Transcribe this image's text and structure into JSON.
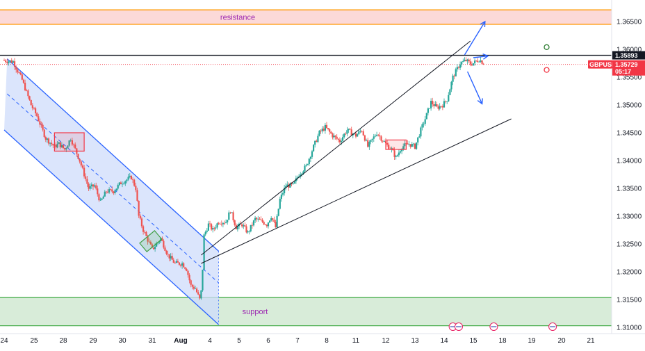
{
  "symbol": "GBPUSD",
  "countdown": "05:17",
  "colors": {
    "up": "#26a69a",
    "down": "#ef5350",
    "channel_fill": "#cfdcfb",
    "channel_line": "#2962ff",
    "resistance_fill": "#fcd9d8",
    "resistance_line": "#ff9800",
    "support_fill": "#d8ecd9",
    "support_line": "#4caf50",
    "price_tag": "#f23645",
    "level_tag": "#131722"
  },
  "chart_data": {
    "type": "candlestick",
    "title": "",
    "y_axis": {
      "side": "right",
      "ylim": [
        1.309,
        1.3675
      ],
      "ticks": [
        "1.36500",
        "1.36000",
        "1.35500",
        "1.35000",
        "1.34500",
        "1.34000",
        "1.33500",
        "1.33000",
        "1.32500",
        "1.32000",
        "1.31500",
        "1.31000"
      ],
      "tick_values": [
        1.365,
        1.36,
        1.355,
        1.35,
        1.345,
        1.34,
        1.335,
        1.33,
        1.325,
        1.32,
        1.315,
        1.31
      ]
    },
    "x_axis": {
      "ticks": [
        "24",
        "25",
        "28",
        "29",
        "30",
        "31",
        "Aug",
        "4",
        "5",
        "6",
        "7",
        "8",
        "11",
        "12",
        "13",
        "14",
        "15",
        "18",
        "19",
        "20",
        "21"
      ],
      "tick_index": [
        0,
        1,
        2,
        3,
        4,
        5,
        6,
        7,
        8,
        9,
        10,
        11,
        12,
        13,
        14,
        15,
        16,
        17,
        18,
        19,
        20
      ]
    },
    "zones": [
      {
        "name": "resistance",
        "label": "resistance",
        "from": 1.3645,
        "to": 1.3671
      },
      {
        "name": "support",
        "label": "support",
        "from": 1.3103,
        "to": 1.3154
      }
    ],
    "horizontal_level": {
      "value": 1.35893,
      "label": "1.35893"
    },
    "current_price": {
      "value": 1.35729,
      "label": "1.35729"
    },
    "ohlc_anchors": [
      [
        0.0,
        1.358
      ],
      [
        0.3,
        1.3578
      ],
      [
        0.6,
        1.3545
      ],
      [
        0.9,
        1.35
      ],
      [
        1.1,
        1.348
      ],
      [
        1.4,
        1.344
      ],
      [
        1.7,
        1.3425
      ],
      [
        1.85,
        1.343
      ],
      [
        2.05,
        1.342
      ],
      [
        2.25,
        1.344
      ],
      [
        2.4,
        1.342
      ],
      [
        2.55,
        1.34
      ],
      [
        2.85,
        1.335
      ],
      [
        3.05,
        1.3355
      ],
      [
        3.25,
        1.3325
      ],
      [
        3.45,
        1.3345
      ],
      [
        3.7,
        1.3345
      ],
      [
        3.95,
        1.336
      ],
      [
        4.3,
        1.337
      ],
      [
        4.45,
        1.335
      ],
      [
        4.55,
        1.33
      ],
      [
        4.7,
        1.3275
      ],
      [
        5.0,
        1.324
      ],
      [
        5.3,
        1.326
      ],
      [
        5.55,
        1.323
      ],
      [
        5.8,
        1.3215
      ],
      [
        6.05,
        1.3215
      ],
      [
        6.2,
        1.3205
      ],
      [
        6.35,
        1.3175
      ],
      [
        6.5,
        1.317
      ],
      [
        6.65,
        1.315
      ],
      [
        6.72,
        1.317
      ],
      [
        6.8,
        1.3265
      ],
      [
        6.95,
        1.3285
      ],
      [
        7.1,
        1.3275
      ],
      [
        7.3,
        1.329
      ],
      [
        7.55,
        1.329
      ],
      [
        7.7,
        1.331
      ],
      [
        7.9,
        1.328
      ],
      [
        8.1,
        1.3285
      ],
      [
        8.3,
        1.327
      ],
      [
        8.55,
        1.3295
      ],
      [
        8.8,
        1.329
      ],
      [
        8.95,
        1.3285
      ],
      [
        9.1,
        1.33
      ],
      [
        9.25,
        1.328
      ],
      [
        9.4,
        1.333
      ],
      [
        9.6,
        1.3355
      ],
      [
        9.85,
        1.3355
      ],
      [
        10.05,
        1.3375
      ],
      [
        10.3,
        1.339
      ],
      [
        10.55,
        1.3425
      ],
      [
        10.75,
        1.345
      ],
      [
        10.95,
        1.346
      ],
      [
        11.2,
        1.3445
      ],
      [
        11.45,
        1.3435
      ],
      [
        11.7,
        1.3455
      ],
      [
        12.0,
        1.3445
      ],
      [
        12.2,
        1.3455
      ],
      [
        12.4,
        1.3425
      ],
      [
        12.7,
        1.345
      ],
      [
        13.0,
        1.343
      ],
      [
        13.2,
        1.342
      ],
      [
        13.35,
        1.3405
      ],
      [
        13.55,
        1.3425
      ],
      [
        13.8,
        1.343
      ],
      [
        14.0,
        1.3425
      ],
      [
        14.2,
        1.3455
      ],
      [
        14.35,
        1.3475
      ],
      [
        14.55,
        1.3505
      ],
      [
        14.75,
        1.3495
      ],
      [
        14.95,
        1.35
      ],
      [
        15.1,
        1.351
      ],
      [
        15.3,
        1.355
      ],
      [
        15.55,
        1.3575
      ],
      [
        15.75,
        1.358
      ],
      [
        15.9,
        1.3574
      ],
      [
        16.0,
        1.3575
      ],
      [
        16.2,
        1.3582
      ],
      [
        16.4,
        1.3573
      ]
    ],
    "annotations": {
      "descending_channel": {
        "upper": [
          [
            0.1,
            1.3583
          ],
          [
            7.3,
            1.3237
          ]
        ],
        "lower": [
          [
            0.0,
            1.3455
          ],
          [
            7.3,
            1.3105
          ]
        ],
        "mid": [
          [
            0.1,
            1.352
          ],
          [
            7.3,
            1.318
          ]
        ]
      },
      "rising_channel": {
        "upper": [
          [
            6.7,
            1.323
          ],
          [
            15.9,
            1.3615
          ]
        ],
        "lower": [
          [
            6.7,
            1.3215
          ],
          [
            17.3,
            1.3475
          ]
        ]
      },
      "boxes": [
        {
          "x0": 1.7,
          "x1": 2.7,
          "y0": 1.3417,
          "y1": 1.345,
          "color": "#f23645"
        },
        {
          "x0": 13.0,
          "x1": 13.7,
          "y0": 1.342,
          "y1": 1.3437,
          "color": "#f23645"
        }
      ],
      "arrows": [
        {
          "from": [
            15.7,
            1.359
          ],
          "to": [
            16.4,
            1.365
          ]
        },
        {
          "from": [
            16.0,
            1.3585
          ],
          "to": [
            16.5,
            1.3588
          ]
        },
        {
          "from": [
            15.8,
            1.356
          ],
          "to": [
            16.3,
            1.3502
          ]
        }
      ],
      "circles": [
        {
          "x": 18.5,
          "y": 1.3604,
          "color": "#2e7d32"
        },
        {
          "x": 18.5,
          "y": 1.3563,
          "color": "#f23645"
        }
      ]
    }
  }
}
